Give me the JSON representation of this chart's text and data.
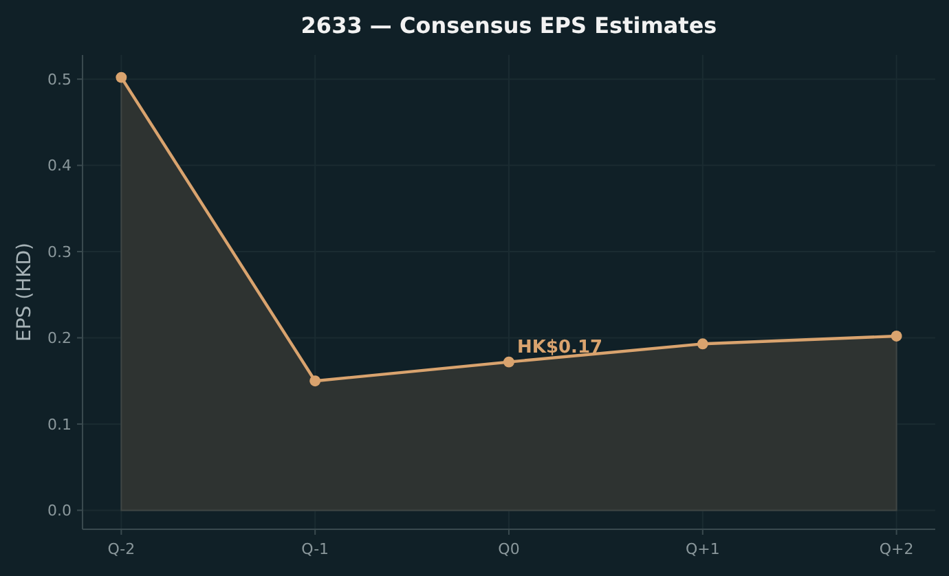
{
  "chart_data": {
    "type": "area",
    "title": "2633 — Consensus EPS Estimates",
    "ylabel": "EPS (HKD)",
    "categories": [
      "Q-2",
      "Q-1",
      "Q0",
      "Q+1",
      "Q+2"
    ],
    "series": [
      {
        "color": "#d9a36e",
        "values": [
          0.502,
          0.15,
          0.172,
          0.193,
          0.202
        ]
      }
    ],
    "ylim": [
      -0.022,
      0.528
    ],
    "yticks": [
      {
        "value": 0,
        "label": "0.0"
      },
      0.1,
      0.2,
      0.3,
      0.4,
      0.5
    ],
    "grid": true,
    "marker": "circle",
    "line_style": "solid",
    "annotations": [
      {
        "text": "HK$0.17",
        "x": "Q0",
        "y": 0.172
      }
    ]
  }
}
